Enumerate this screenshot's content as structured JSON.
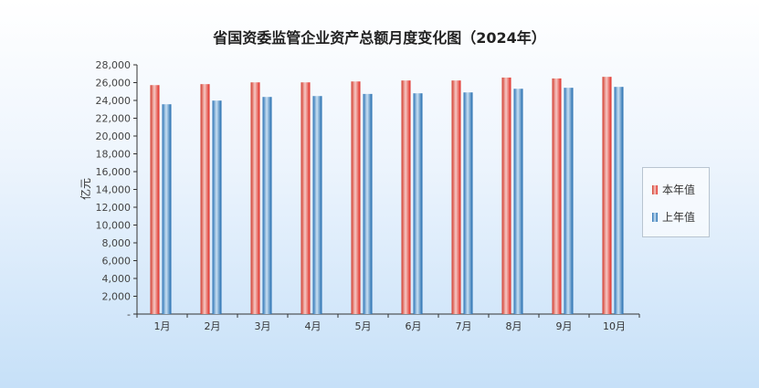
{
  "chart_data": {
    "type": "bar",
    "title": "省国资委监管企业资产总额月度变化图（2024年）",
    "ylabel": "亿元",
    "xlabel": "",
    "ylim": [
      0,
      28000
    ],
    "ytick_step": 2000,
    "ytick_labels": [
      "-",
      "2,000",
      "4,000",
      "6,000",
      "8,000",
      "10,000",
      "12,000",
      "14,000",
      "16,000",
      "18,000",
      "20,000",
      "22,000",
      "24,000",
      "26,000",
      "28,000"
    ],
    "categories": [
      "1月",
      "2月",
      "3月",
      "4月",
      "5月",
      "6月",
      "7月",
      "8月",
      "9月",
      "10月"
    ],
    "series": [
      {
        "name": "本年值",
        "color": "#e03a2e",
        "values": [
          25720,
          25830,
          26030,
          26030,
          26130,
          26240,
          26240,
          26570,
          26470,
          26650
        ]
      },
      {
        "name": "上年值",
        "color": "#2a78bd",
        "values": [
          23570,
          23980,
          24390,
          24490,
          24730,
          24800,
          24900,
          25310,
          25420,
          25520
        ]
      }
    ],
    "grid": false,
    "legend": "right"
  }
}
